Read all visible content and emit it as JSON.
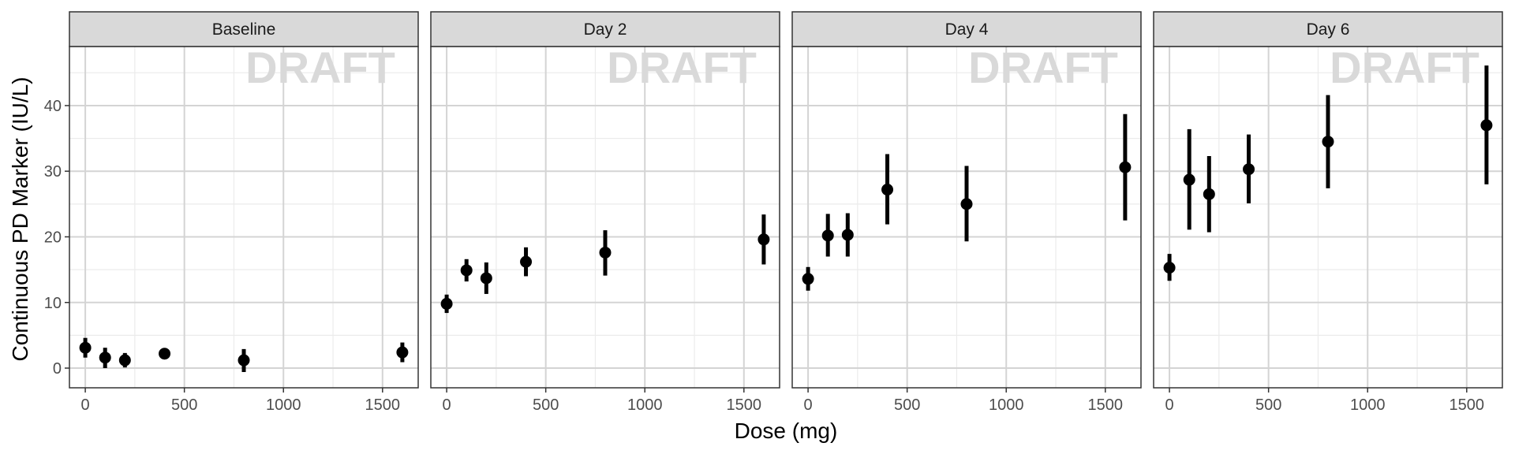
{
  "chart_data": {
    "type": "scatter",
    "style": "faceted point-range (mean with error bars)",
    "xlabel": "Dose (mg)",
    "ylabel": "Continuous PD Marker (IU/L)",
    "xlim": [
      -80,
      1680
    ],
    "ylim": [
      -3,
      49
    ],
    "x_ticks": [
      0,
      500,
      1000,
      1500
    ],
    "y_ticks": [
      0,
      10,
      20,
      30,
      40
    ],
    "grid": true,
    "watermark": "DRAFT",
    "colors": {
      "point": "#000000",
      "strip_fill": "#d9d9d9",
      "grid_major": "#d4d4d4",
      "grid_minor": "#ebebeb",
      "watermark": "#d9d9d9"
    },
    "panels": [
      {
        "title": "Baseline",
        "points": [
          {
            "x": 0,
            "y": 3.1,
            "lo": 1.6,
            "hi": 4.6
          },
          {
            "x": 100,
            "y": 1.6,
            "lo": 0.0,
            "hi": 3.1
          },
          {
            "x": 200,
            "y": 1.2,
            "lo": 0.1,
            "hi": 2.3
          },
          {
            "x": 400,
            "y": 2.2,
            "lo": 1.7,
            "hi": 2.6
          },
          {
            "x": 800,
            "y": 1.2,
            "lo": -0.6,
            "hi": 2.9
          },
          {
            "x": 1600,
            "y": 2.4,
            "lo": 0.9,
            "hi": 3.9
          }
        ]
      },
      {
        "title": "Day 2",
        "points": [
          {
            "x": 0,
            "y": 9.8,
            "lo": 8.4,
            "hi": 11.2
          },
          {
            "x": 100,
            "y": 14.9,
            "lo": 13.2,
            "hi": 16.6
          },
          {
            "x": 200,
            "y": 13.7,
            "lo": 11.3,
            "hi": 16.1
          },
          {
            "x": 400,
            "y": 16.2,
            "lo": 14.0,
            "hi": 18.4
          },
          {
            "x": 800,
            "y": 17.6,
            "lo": 14.1,
            "hi": 21.0
          },
          {
            "x": 1600,
            "y": 19.6,
            "lo": 15.8,
            "hi": 23.4
          }
        ]
      },
      {
        "title": "Day 4",
        "points": [
          {
            "x": 0,
            "y": 13.6,
            "lo": 11.8,
            "hi": 15.4
          },
          {
            "x": 100,
            "y": 20.2,
            "lo": 17.0,
            "hi": 23.5
          },
          {
            "x": 200,
            "y": 20.3,
            "lo": 17.0,
            "hi": 23.6
          },
          {
            "x": 400,
            "y": 27.2,
            "lo": 21.9,
            "hi": 32.6
          },
          {
            "x": 800,
            "y": 25.0,
            "lo": 19.3,
            "hi": 30.8
          },
          {
            "x": 1600,
            "y": 30.6,
            "lo": 22.5,
            "hi": 38.7
          }
        ]
      },
      {
        "title": "Day 6",
        "points": [
          {
            "x": 0,
            "y": 15.3,
            "lo": 13.3,
            "hi": 17.4
          },
          {
            "x": 100,
            "y": 28.7,
            "lo": 21.1,
            "hi": 36.4
          },
          {
            "x": 200,
            "y": 26.5,
            "lo": 20.7,
            "hi": 32.3
          },
          {
            "x": 400,
            "y": 30.3,
            "lo": 25.1,
            "hi": 35.6
          },
          {
            "x": 800,
            "y": 34.5,
            "lo": 27.4,
            "hi": 41.6
          },
          {
            "x": 1600,
            "y": 37.0,
            "lo": 28.0,
            "hi": 46.1
          }
        ]
      }
    ]
  }
}
